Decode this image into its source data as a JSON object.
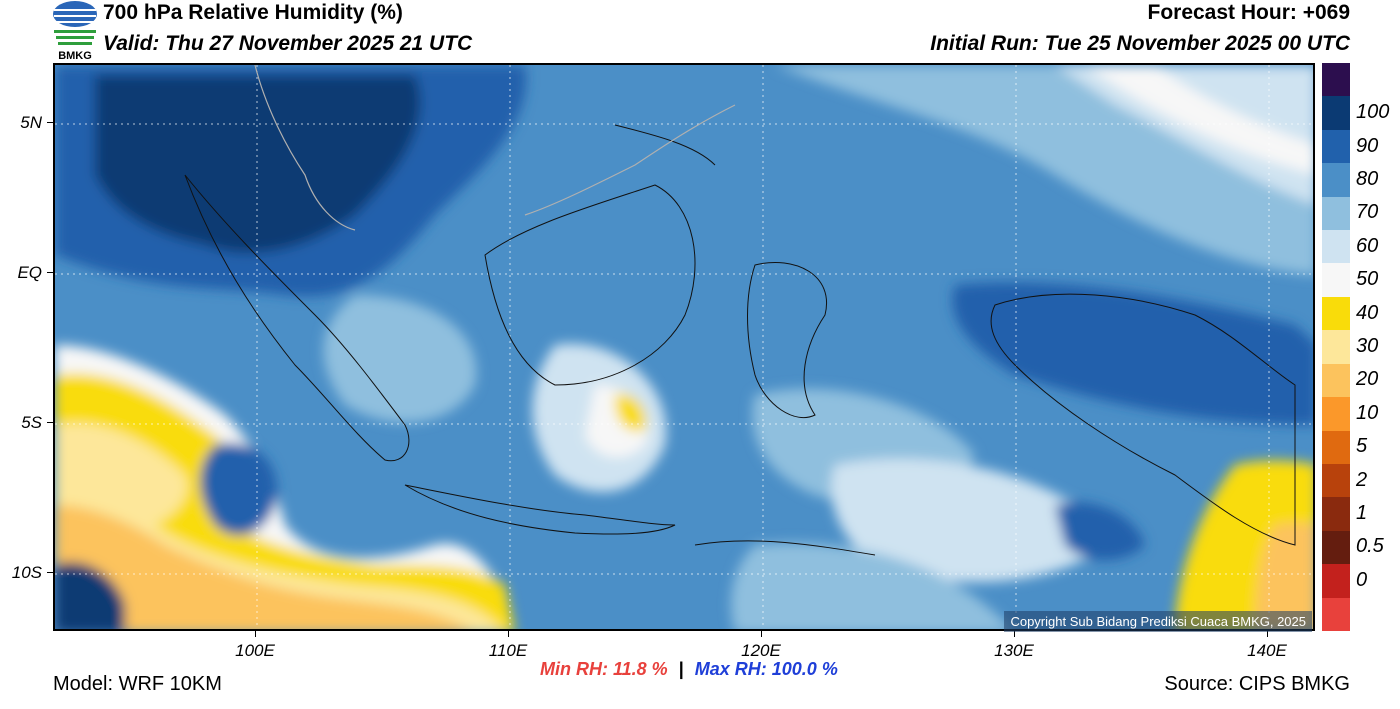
{
  "header": {
    "title": "700 hPa Relative Humidity (%)",
    "valid": "Valid: Thu 27 November 2025 21 UTC",
    "forecast_hour": "Forecast Hour: +069",
    "initial_run": "Initial Run: Tue 25 November 2025 00 UTC",
    "logo_text": "BMKG"
  },
  "axes": {
    "lat_labels": [
      "5N",
      "EQ",
      "5S",
      "10S"
    ],
    "lon_labels": [
      "100E",
      "110E",
      "120E",
      "130E",
      "140E"
    ]
  },
  "colorbar": {
    "labels": [
      "100",
      "90",
      "80",
      "70",
      "60",
      "50",
      "40",
      "30",
      "20",
      "10",
      "5",
      "2",
      "1",
      "0.5",
      "0"
    ],
    "colors": [
      "#2c0e4e",
      "#0b3a73",
      "#2161ac",
      "#4b8fc7",
      "#8fbfde",
      "#cfe3f1",
      "#f7f7f7",
      "#f9dc0a",
      "#fde79a",
      "#fcc35d",
      "#fb982a",
      "#e06a10",
      "#b8420c",
      "#8a2a0e",
      "#641d0f",
      "#c3211d",
      "#e8413c"
    ]
  },
  "copyright": "Copyright Sub Bidang Prediksi Cuaca BMKG, 2025",
  "stats": {
    "min_rh": "Min RH:  11.8 %",
    "separator": "|",
    "max_rh": "Max RH: 100.0 %"
  },
  "footer": {
    "model": "Model: WRF 10KM",
    "source": "Source: CIPS BMKG"
  }
}
